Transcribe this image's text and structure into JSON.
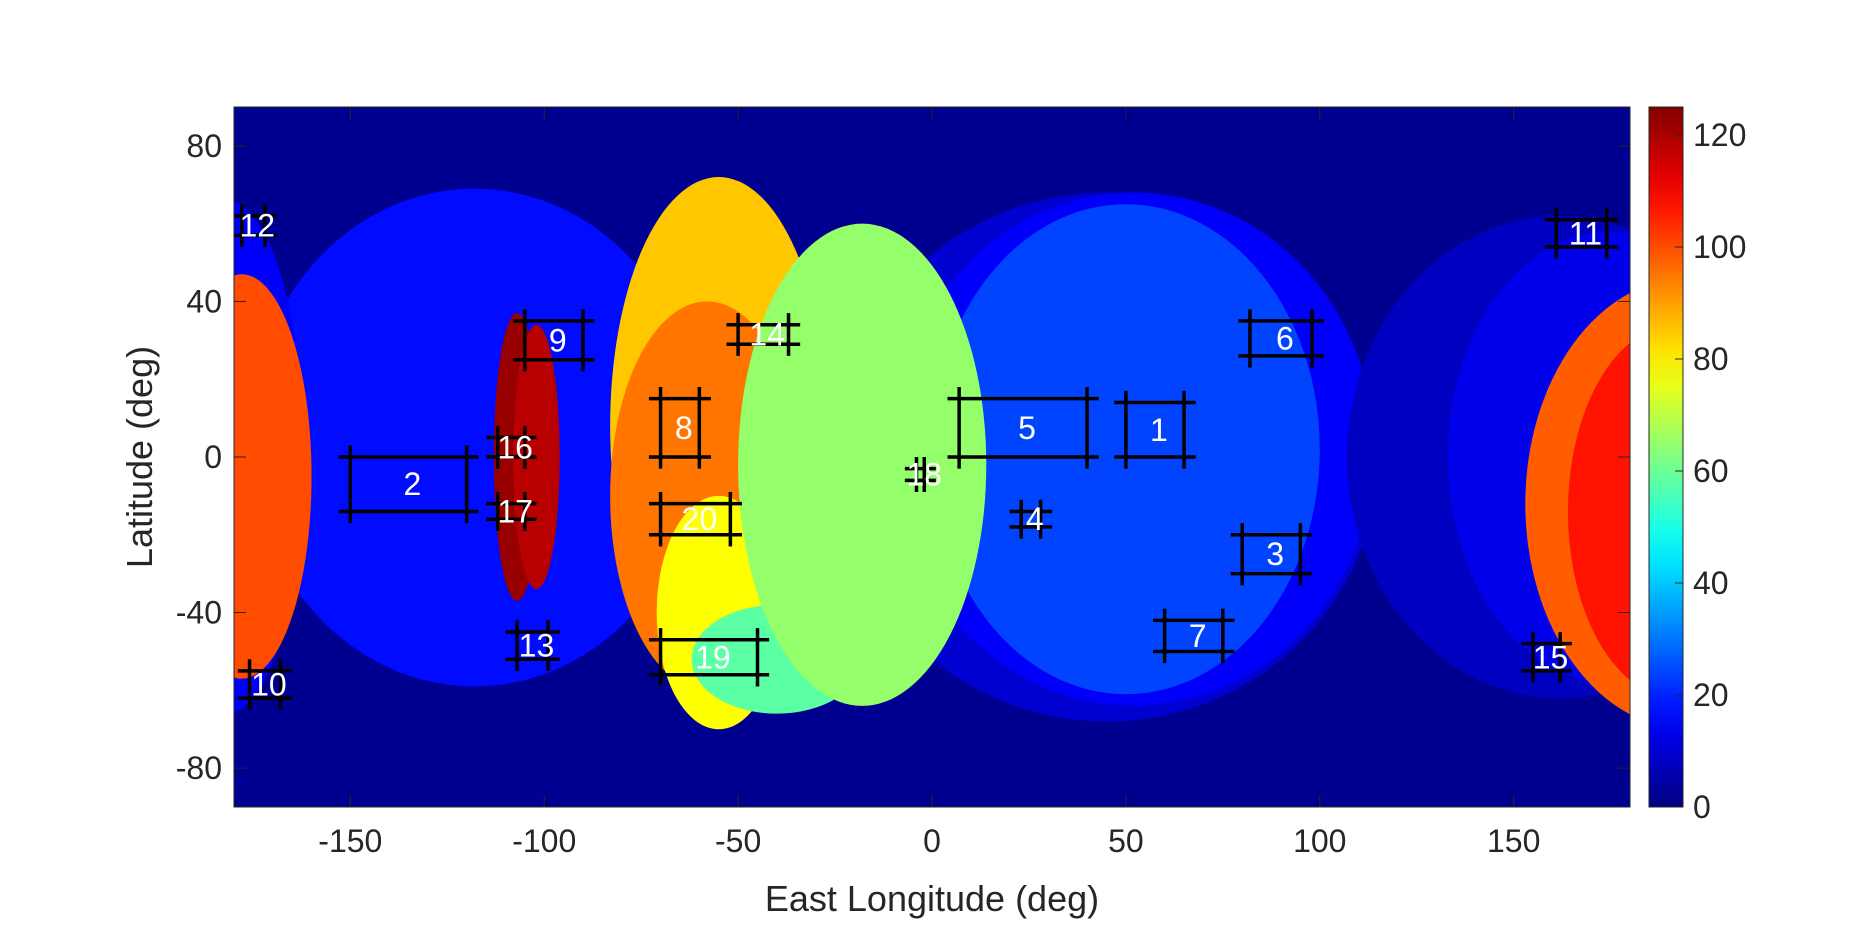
{
  "chart_data": {
    "type": "heatmap",
    "title": "",
    "xlabel": "East Longitude (deg)",
    "ylabel": "Latitude (deg)",
    "xlim": [
      -180,
      180
    ],
    "ylim": [
      -90,
      90
    ],
    "xticks": [
      -150,
      -100,
      -50,
      0,
      50,
      100,
      150
    ],
    "yticks": [
      80,
      40,
      0,
      -40,
      -80
    ],
    "colorbar": {
      "range": [
        0,
        125
      ],
      "ticks": [
        0,
        20,
        40,
        60,
        80,
        100,
        120
      ],
      "colormap": "jet"
    },
    "background_value": 2,
    "coverage_areas": [
      {
        "shape": "ellipse",
        "cx": -118,
        "cy": 5,
        "rx": 58,
        "ry": 64,
        "value": 17
      },
      {
        "shape": "ellipse",
        "cx": 45,
        "cy": 0,
        "rx": 70,
        "ry": 68,
        "value": 10
      },
      {
        "shape": "ellipse",
        "cx": 52,
        "cy": 2,
        "rx": 62,
        "ry": 66,
        "value": 15
      },
      {
        "shape": "ellipse",
        "cx": 50,
        "cy": 2,
        "rx": 50,
        "ry": 63,
        "value": 24
      },
      {
        "shape": "ellipse",
        "cx": 162,
        "cy": 0,
        "rx": 55,
        "ry": 62,
        "value": 8
      },
      {
        "shape": "ellipse",
        "cx": 175,
        "cy": 0,
        "rx": 42,
        "ry": 58,
        "value": 13
      },
      {
        "shape": "ellipse",
        "cx": -182,
        "cy": 0,
        "rx": 20,
        "ry": 66,
        "value": 15
      },
      {
        "shape": "ellipse",
        "cx": -178,
        "cy": -5,
        "rx": 18,
        "ry": 52,
        "value": 100
      },
      {
        "shape": "ellipse",
        "cx": -55,
        "cy": 8,
        "rx": 28,
        "ry": 64,
        "value": 85
      },
      {
        "shape": "ellipse",
        "cx": -58,
        "cy": -10,
        "rx": 25,
        "ry": 50,
        "value": 95
      },
      {
        "shape": "ellipse",
        "cx": -55,
        "cy": -40,
        "rx": 16,
        "ry": 30,
        "value": 78
      },
      {
        "shape": "ellipse",
        "cx": -40,
        "cy": -52,
        "rx": 22,
        "ry": 14,
        "value": 58
      },
      {
        "shape": "ellipse",
        "cx": -18,
        "cy": -2,
        "rx": 32,
        "ry": 62,
        "value": 65
      },
      {
        "shape": "ellipse",
        "cx": -107,
        "cy": 0,
        "rx": 6,
        "ry": 37,
        "value": 122
      },
      {
        "shape": "ellipse",
        "cx": -102,
        "cy": 0,
        "rx": 6,
        "ry": 34,
        "value": 118
      },
      {
        "shape": "ellipse",
        "cx": 195,
        "cy": -12,
        "rx": 42,
        "ry": 58,
        "value": 98
      },
      {
        "shape": "ellipse",
        "cx": 192,
        "cy": -14,
        "rx": 28,
        "ry": 48,
        "value": 107
      }
    ],
    "target_regions": [
      {
        "label": "1",
        "lon": [
          50,
          65
        ],
        "lat": [
          0,
          14
        ]
      },
      {
        "label": "2",
        "lon": [
          -150,
          -120
        ],
        "lat": [
          -14,
          0
        ]
      },
      {
        "label": "3",
        "lon": [
          80,
          95
        ],
        "lat": [
          -30,
          -20
        ]
      },
      {
        "label": "4",
        "lon": [
          23,
          28
        ],
        "lat": [
          -18,
          -14
        ]
      },
      {
        "label": "5",
        "lon": [
          7,
          40
        ],
        "lat": [
          0,
          15
        ]
      },
      {
        "label": "6",
        "lon": [
          82,
          98
        ],
        "lat": [
          26,
          35
        ]
      },
      {
        "label": "7",
        "lon": [
          60,
          75
        ],
        "lat": [
          -50,
          -42
        ]
      },
      {
        "label": "8",
        "lon": [
          -70,
          -60
        ],
        "lat": [
          0,
          15
        ]
      },
      {
        "label": "9",
        "lon": [
          -105,
          -90
        ],
        "lat": [
          25,
          35
        ]
      },
      {
        "label": "10",
        "lon": [
          -176,
          -168
        ],
        "lat": [
          -62,
          -55
        ]
      },
      {
        "label": "11",
        "lon": [
          161,
          174
        ],
        "lat": [
          54,
          61
        ]
      },
      {
        "label": "12",
        "lon": [
          -178,
          -172
        ],
        "lat": [
          57,
          62
        ]
      },
      {
        "label": "13",
        "lon": [
          -107,
          -99
        ],
        "lat": [
          -52,
          -45
        ]
      },
      {
        "label": "14",
        "lon": [
          -50,
          -37
        ],
        "lat": [
          29,
          34
        ]
      },
      {
        "label": "15",
        "lon": [
          155,
          162
        ],
        "lat": [
          -55,
          -48
        ]
      },
      {
        "label": "16",
        "lon": [
          -112,
          -105
        ],
        "lat": [
          0,
          5
        ]
      },
      {
        "label": "17",
        "lon": [
          -112,
          -105
        ],
        "lat": [
          -16,
          -12
        ]
      },
      {
        "label": "18",
        "lon": [
          -4,
          -2
        ],
        "lat": [
          -6,
          -3
        ]
      },
      {
        "label": "19",
        "lon": [
          -70,
          -45
        ],
        "lat": [
          -56,
          -47
        ]
      },
      {
        "label": "20",
        "lon": [
          -70,
          -52
        ],
        "lat": [
          -20,
          -12
        ]
      }
    ]
  }
}
